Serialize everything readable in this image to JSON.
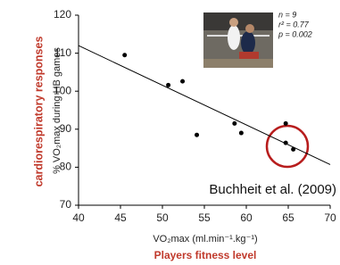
{
  "chart_data": {
    "type": "scatter",
    "y_axis_label": "% VO₂max during HB games",
    "x_axis_label": "VO₂max (ml.min⁻¹.kg⁻¹)",
    "side_label": "cardiorespiratory  responses",
    "bottom_label": "Players fitness level",
    "stats": [
      "n = 9",
      "r² = 0.77",
      "p = 0.002"
    ],
    "citation": "Buchheit et al. (2009)",
    "x": [
      45.5,
      50.7,
      52.4,
      54.1,
      58.6,
      59.4,
      64.7,
      64.7,
      65.6
    ],
    "values": [
      109.5,
      101.6,
      102.6,
      88.5,
      91.5,
      89,
      91.5,
      86.4,
      84.7
    ],
    "color": "#000000",
    "trendline": {
      "x": [
        40,
        70
      ],
      "values": [
        112,
        80.7
      ],
      "color": "#000000"
    },
    "xlim": [
      40,
      70
    ],
    "xticks": [
      40,
      45,
      50,
      55,
      60,
      65,
      70
    ],
    "ylim": [
      70,
      120
    ],
    "yticks": [
      70,
      80,
      90,
      100,
      110,
      120
    ]
  }
}
